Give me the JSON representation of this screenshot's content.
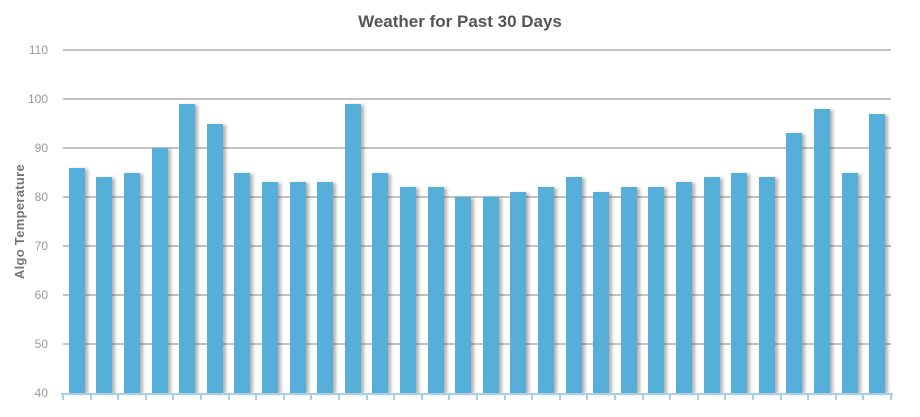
{
  "chart_data": {
    "type": "bar",
    "title": "Weather for Past 30 Days",
    "xlabel": "",
    "ylabel": "Algo Temperature",
    "values": [
      86,
      84,
      85,
      90,
      99,
      95,
      85,
      83,
      83,
      83,
      99,
      85,
      82,
      82,
      80,
      80,
      81,
      82,
      84,
      81,
      82,
      82,
      83,
      84,
      85,
      84,
      93,
      98,
      85,
      97
    ],
    "ylim": [
      40,
      110
    ],
    "yticks": [
      110,
      100,
      90,
      80,
      70,
      60,
      50,
      40
    ],
    "grid": true,
    "legend": "none",
    "x_tick_labels": []
  },
  "colors": {
    "bar": "#56AFD9",
    "gridline": "#C2C2C2",
    "x_axis_line": "#A8CFE5",
    "title_text": "#555555",
    "tick_label_text": "#999999",
    "y_axis_title_text": "#757575",
    "background": "#FFFFFF"
  }
}
